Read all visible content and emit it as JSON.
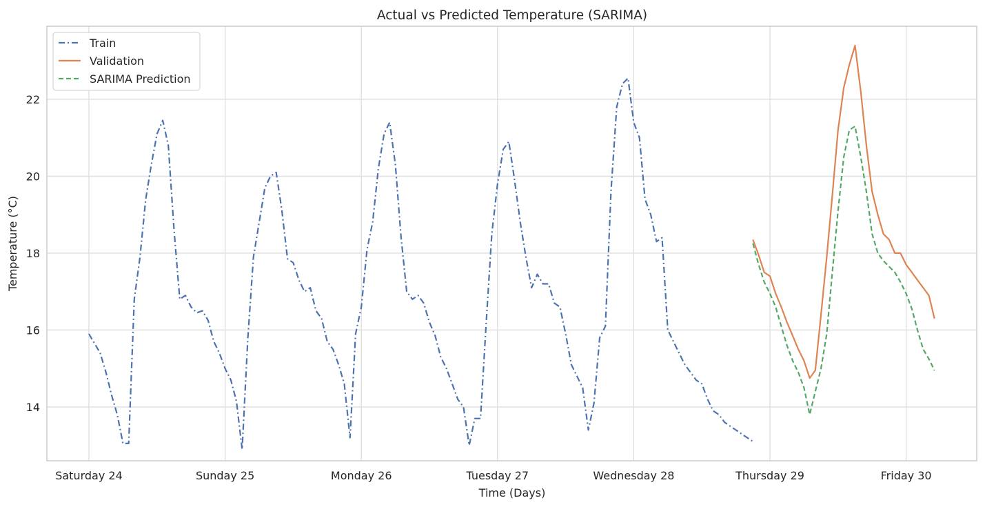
{
  "chart_data": {
    "type": "line",
    "title": "Actual vs Predicted Temperature (SARIMA)",
    "xlabel": "Time (Days)",
    "ylabel": "Temperature (°C)",
    "ylim": [
      12.6,
      23.9
    ],
    "y_ticks": [
      14,
      16,
      18,
      20,
      22
    ],
    "x_ticks": [
      {
        "x": 0,
        "label": "Saturday 24"
      },
      {
        "x": 1,
        "label": "Sunday 25"
      },
      {
        "x": 2,
        "label": "Monday 26"
      },
      {
        "x": 3,
        "label": "Tuesday 27"
      },
      {
        "x": 4,
        "label": "Wednesday 28"
      },
      {
        "x": 5,
        "label": "Thursday 29"
      },
      {
        "x": 6,
        "label": "Friday 30"
      }
    ],
    "grid": true,
    "legend": "top-left",
    "colors": {
      "train": "#4c72b0",
      "validation": "#dd8452",
      "prediction": "#55a868",
      "grid": "#dddddd",
      "frame": "#cccccc"
    },
    "series": [
      {
        "name": "Train",
        "key": "train",
        "x": [
          0,
          0.083,
          0.125,
          0.167,
          0.208,
          0.25,
          0.292,
          0.333,
          0.375,
          0.417,
          0.458,
          0.5,
          0.542,
          0.583,
          0.625,
          0.667,
          0.708,
          0.75,
          0.792,
          0.833,
          0.875,
          0.917,
          0.958,
          1.0,
          1.042,
          1.083,
          1.125,
          1.167,
          1.208,
          1.25,
          1.292,
          1.333,
          1.375,
          1.417,
          1.458,
          1.5,
          1.542,
          1.583,
          1.625,
          1.667,
          1.708,
          1.75,
          1.792,
          1.833,
          1.875,
          1.917,
          1.958,
          2.0,
          2.042,
          2.083,
          2.125,
          2.167,
          2.208,
          2.25,
          2.292,
          2.333,
          2.375,
          2.417,
          2.458,
          2.5,
          2.542,
          2.583,
          2.625,
          2.667,
          2.708,
          2.75,
          2.792,
          2.833,
          2.875,
          2.917,
          2.958,
          3.0,
          3.042,
          3.083,
          3.125,
          3.167,
          3.208,
          3.25,
          3.292,
          3.333,
          3.375,
          3.417,
          3.458,
          3.5,
          3.542,
          3.583,
          3.625,
          3.667,
          3.708,
          3.75,
          3.792,
          3.833,
          3.875,
          3.917,
          3.958,
          4.0,
          4.042,
          4.083,
          4.125,
          4.167,
          4.208,
          4.25,
          4.292,
          4.333,
          4.375,
          4.417,
          4.458,
          4.5,
          4.542,
          4.583,
          4.625,
          4.667,
          4.708,
          4.75,
          4.792,
          4.833,
          4.875
        ],
        "y": [
          15.9,
          15.4,
          14.9,
          14.3,
          13.8,
          13.05,
          13.05,
          16.8,
          17.9,
          19.4,
          20.3,
          21.1,
          21.45,
          20.8,
          18.6,
          16.8,
          16.9,
          16.6,
          16.45,
          16.5,
          16.25,
          15.7,
          15.4,
          15.0,
          14.7,
          14.15,
          12.9,
          15.8,
          17.9,
          18.8,
          19.7,
          20.0,
          20.1,
          19.1,
          17.85,
          17.75,
          17.3,
          17.0,
          17.1,
          16.5,
          16.3,
          15.7,
          15.5,
          15.1,
          14.6,
          13.2,
          15.9,
          16.6,
          18.1,
          18.8,
          20.2,
          21.1,
          21.4,
          20.3,
          18.4,
          17.0,
          16.8,
          16.9,
          16.7,
          16.2,
          15.85,
          15.3,
          15.0,
          14.6,
          14.2,
          14.0,
          13.0,
          13.7,
          13.7,
          16.2,
          18.5,
          19.8,
          20.7,
          20.9,
          19.9,
          18.8,
          17.9,
          17.1,
          17.45,
          17.2,
          17.2,
          16.7,
          16.6,
          15.9,
          15.1,
          14.8,
          14.5,
          13.4,
          14.1,
          15.8,
          16.1,
          19.6,
          21.8,
          22.4,
          22.55,
          21.4,
          21.0,
          19.4,
          19.0,
          18.3,
          18.4,
          16.0,
          15.7,
          15.4,
          15.1,
          14.9,
          14.7,
          14.6,
          14.2,
          13.9,
          13.8,
          13.6,
          13.5,
          13.4,
          13.3,
          13.2,
          13.1
        ],
        "style": "dashdot"
      },
      {
        "name": "Validation",
        "key": "validation",
        "x": [
          4.875,
          4.917,
          4.958,
          5.0,
          5.042,
          5.083,
          5.125,
          5.167,
          5.208,
          5.25,
          5.292,
          5.333,
          5.375,
          5.417,
          5.458,
          5.5,
          5.542,
          5.583,
          5.625,
          5.667,
          5.708,
          5.75,
          5.792,
          5.833,
          5.875,
          5.917,
          5.958,
          6.0,
          6.042,
          6.083,
          6.125,
          6.167,
          6.208
        ],
        "y": [
          18.35,
          17.95,
          17.5,
          17.4,
          16.95,
          16.6,
          16.2,
          15.85,
          15.5,
          15.2,
          14.75,
          14.95,
          16.4,
          17.9,
          19.5,
          21.2,
          22.3,
          22.9,
          23.4,
          22.2,
          20.8,
          19.6,
          19.0,
          18.5,
          18.35,
          18.0,
          18.0,
          17.7,
          17.5,
          17.3,
          17.1,
          16.9,
          16.3
        ],
        "style": "solid"
      },
      {
        "name": "SARIMA Prediction",
        "key": "prediction",
        "x": [
          4.875,
          4.917,
          4.958,
          5.0,
          5.042,
          5.083,
          5.125,
          5.167,
          5.208,
          5.25,
          5.292,
          5.333,
          5.375,
          5.417,
          5.458,
          5.5,
          5.542,
          5.583,
          5.625,
          5.667,
          5.708,
          5.75,
          5.792,
          5.833,
          5.875,
          5.917,
          5.958,
          6.0,
          6.042,
          6.083,
          6.125,
          6.167,
          6.208
        ],
        "y": [
          18.25,
          17.7,
          17.25,
          16.95,
          16.6,
          16.1,
          15.6,
          15.2,
          14.9,
          14.5,
          13.8,
          14.4,
          15.0,
          15.9,
          17.5,
          19.1,
          20.5,
          21.2,
          21.3,
          20.5,
          19.6,
          18.5,
          18.0,
          17.8,
          17.65,
          17.5,
          17.25,
          16.95,
          16.55,
          16.0,
          15.5,
          15.25,
          14.95
        ],
        "style": "dashed"
      }
    ]
  }
}
